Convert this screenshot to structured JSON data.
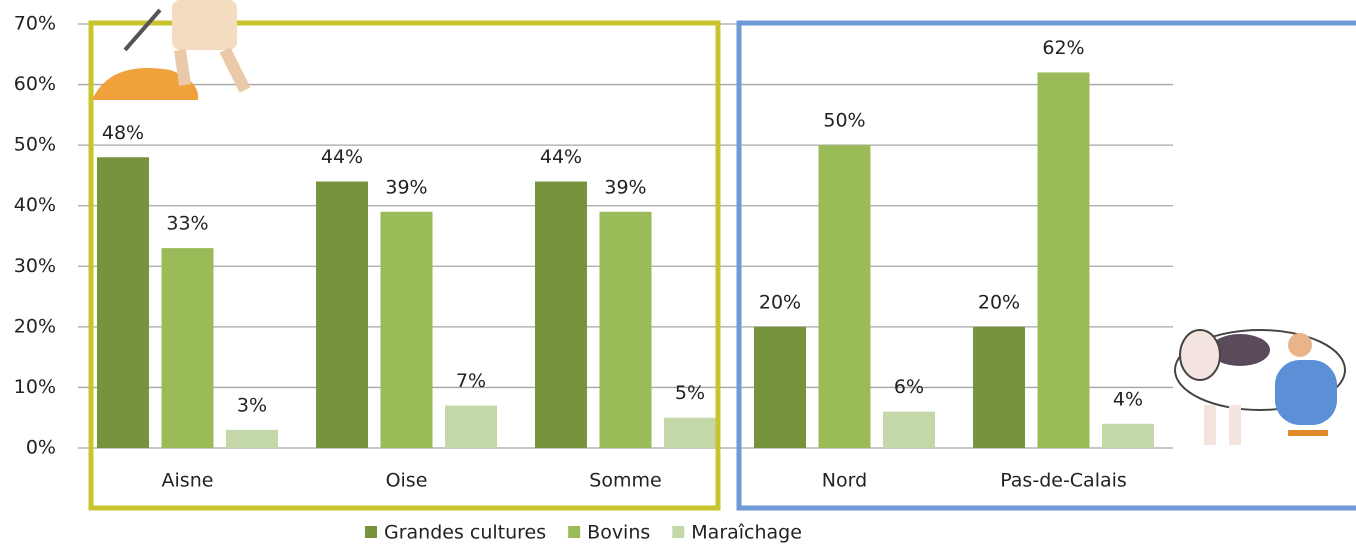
{
  "chart_data": {
    "type": "bar",
    "categories": [
      "Aisne",
      "Oise",
      "Somme",
      "Nord",
      "Pas-de-Calais"
    ],
    "series": [
      {
        "name": "Grandes cultures",
        "color": "#77933c",
        "values": [
          48,
          44,
          44,
          20,
          20
        ],
        "value_labels": [
          "48%",
          "44%",
          "44%",
          "20%",
          "20%"
        ]
      },
      {
        "name": "Bovins",
        "color": "#9bbb59",
        "values": [
          33,
          39,
          39,
          50,
          62
        ],
        "value_labels": [
          "33%",
          "39%",
          "39%",
          "50%",
          "62%"
        ]
      },
      {
        "name": "Maraîchage",
        "color": "#c4d7a9",
        "values": [
          3,
          7,
          5,
          6,
          4
        ],
        "value_labels": [
          "3%",
          "7%",
          "5%",
          "6%",
          "4%"
        ]
      }
    ],
    "ylim": [
      0,
      70
    ],
    "yticks": [
      {
        "value": 0,
        "label": "0%"
      },
      {
        "value": 10,
        "label": "10%"
      },
      {
        "value": 20,
        "label": "20%"
      },
      {
        "value": 30,
        "label": "30%"
      },
      {
        "value": 40,
        "label": "40%"
      },
      {
        "value": 50,
        "label": "50%"
      },
      {
        "value": 60,
        "label": "60%"
      },
      {
        "value": 70,
        "label": "70%"
      }
    ],
    "grid": true,
    "legend": "bottom"
  }
}
